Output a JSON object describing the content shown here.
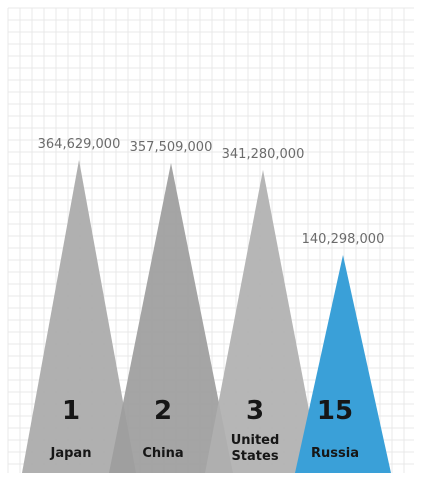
{
  "chart_data": {
    "type": "bar",
    "title": "",
    "xlabel": "",
    "ylabel": "",
    "grid": true,
    "categories": [
      "Japan",
      "China",
      "United States",
      "Russia"
    ],
    "category_lines": [
      [
        "Japan"
      ],
      [
        "China"
      ],
      [
        "United",
        "States"
      ],
      [
        "Russia"
      ]
    ],
    "ranks": [
      "1",
      "2",
      "3",
      "15"
    ],
    "values": [
      364629000,
      357509000,
      341280000,
      140298000
    ],
    "value_labels": [
      "364,629,000",
      "357,509,000",
      "341,280,000",
      "140,298,000"
    ],
    "colors": [
      "#a9a9a9",
      "#9d9d9d",
      "#b0b0b0",
      "#3aa0d8"
    ]
  }
}
